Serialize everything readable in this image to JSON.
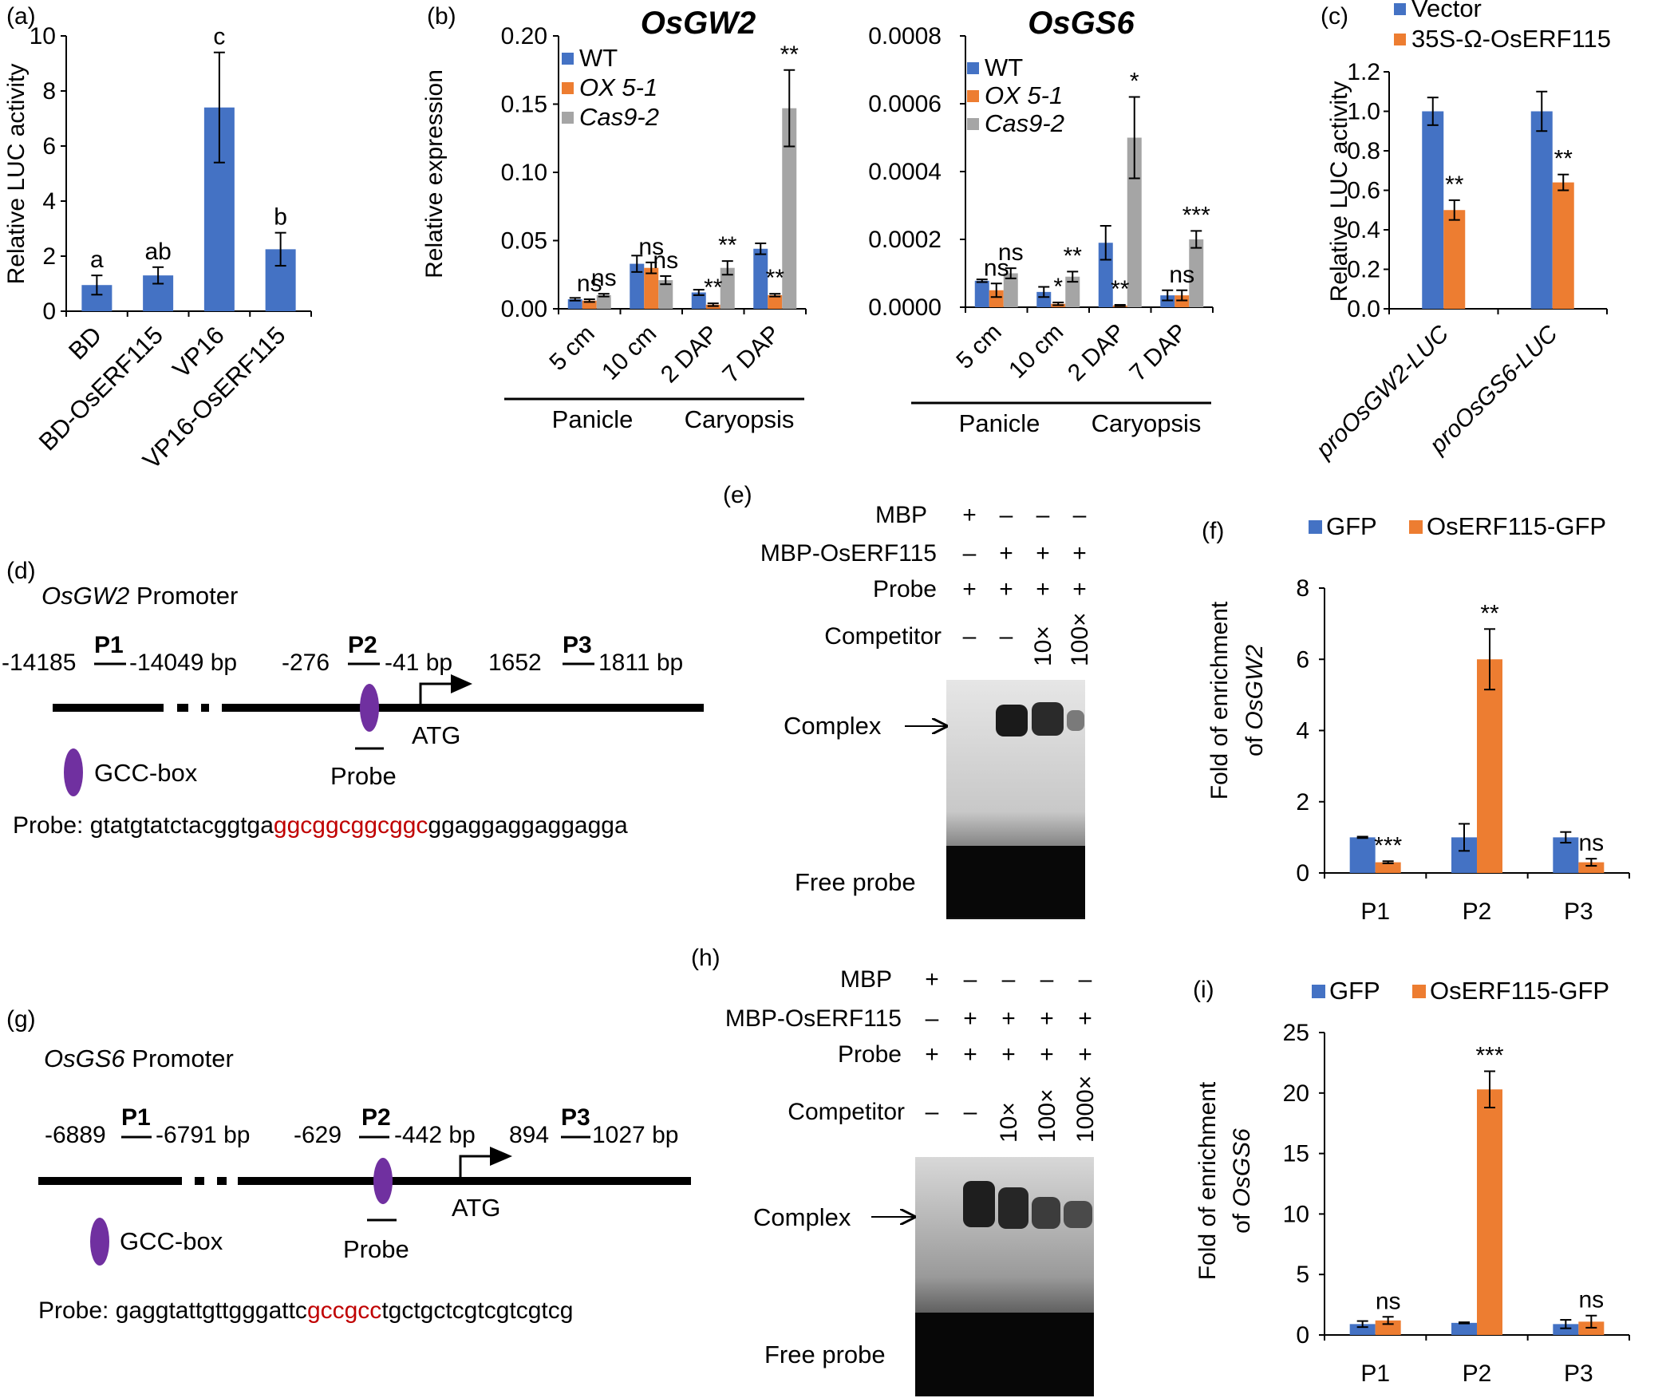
{
  "colors": {
    "blue": "#4472C4",
    "orange": "#ED7D31",
    "gray": "#A5A5A5",
    "red": "#C00000",
    "purple": "#7030A0"
  },
  "chart_data": [
    {
      "panel": "(a)",
      "type": "bar",
      "ylabel": "Relative LUC activity",
      "ylim": [
        0,
        10
      ],
      "yticks": [
        0,
        2,
        4,
        6,
        8,
        10
      ],
      "categories": [
        "BD",
        "BD-OsERF115",
        "VP16",
        "VP16-OsERF115"
      ],
      "series": [
        {
          "color": "blue",
          "values": [
            0.95,
            1.3,
            7.4,
            2.25
          ],
          "errors": [
            0.35,
            0.3,
            2.0,
            0.6
          ]
        }
      ],
      "annotations": [
        "a",
        "ab",
        "c",
        "b"
      ]
    },
    {
      "panel": "(b)",
      "type": "bar",
      "title": "OsGW2",
      "ylabel": "Relative expression",
      "ylim": [
        0,
        0.2
      ],
      "yticks": [
        "0.00",
        "0.05",
        "0.10",
        "0.15",
        "0.20"
      ],
      "categories": [
        "5 cm",
        "10 cm",
        "2 DAP",
        "7 DAP"
      ],
      "groups": [
        {
          "label": "Panicle",
          "span": [
            0,
            1
          ]
        },
        {
          "label": "Caryopsis",
          "span": [
            2,
            3
          ]
        }
      ],
      "series": [
        {
          "name": "WT",
          "color": "blue",
          "values": [
            0.007,
            0.033,
            0.012,
            0.044
          ],
          "errors": [
            0.001,
            0.006,
            0.002,
            0.004
          ]
        },
        {
          "name": "OX 5-1",
          "color": "orange",
          "values": [
            0.006,
            0.03,
            0.003,
            0.01
          ],
          "errors": [
            0.001,
            0.004,
            0.001,
            0.001
          ]
        },
        {
          "name": "Cas9-2",
          "color": "gray",
          "values": [
            0.01,
            0.021,
            0.03,
            0.147
          ],
          "errors": [
            0.001,
            0.003,
            0.005,
            0.028
          ]
        }
      ],
      "annotations": [
        {
          "cat": 0,
          "series": 1,
          "text": "ns"
        },
        {
          "cat": 0,
          "series": 2,
          "text": "ns"
        },
        {
          "cat": 1,
          "series": 1,
          "text": "ns"
        },
        {
          "cat": 1,
          "series": 2,
          "text": "ns"
        },
        {
          "cat": 2,
          "series": 1,
          "text": "**"
        },
        {
          "cat": 2,
          "series": 2,
          "text": "**"
        },
        {
          "cat": 3,
          "series": 1,
          "text": "**"
        },
        {
          "cat": 3,
          "series": 2,
          "text": "**"
        }
      ]
    },
    {
      "panel": "",
      "type": "bar",
      "title": "OsGS6",
      "ylabel": "",
      "ylim": [
        0,
        0.0008
      ],
      "yticks": [
        "0.0000",
        "0.0002",
        "0.0004",
        "0.0006",
        "0.0008"
      ],
      "categories": [
        "5 cm",
        "10 cm",
        "2 DAP",
        "7 DAP"
      ],
      "groups": [
        {
          "label": "Panicle",
          "span": [
            0,
            1
          ]
        },
        {
          "label": "Caryopsis",
          "span": [
            2,
            3
          ]
        }
      ],
      "series": [
        {
          "name": "WT",
          "color": "blue",
          "values": [
            7.8e-05,
            4.5e-05,
            0.00019,
            3.5e-05
          ],
          "errors": [
            4e-06,
            1.5e-05,
            5e-05,
            1.5e-05
          ]
        },
        {
          "name": "OX 5-1",
          "color": "orange",
          "values": [
            5e-05,
            1e-05,
            5e-06,
            3.5e-05
          ],
          "errors": [
            2e-05,
            4e-06,
            2e-06,
            1.5e-05
          ]
        },
        {
          "name": "Cas9-2",
          "color": "gray",
          "values": [
            0.0001,
            9e-05,
            0.0005,
            0.0002
          ],
          "errors": [
            1.5e-05,
            1.5e-05,
            0.00012,
            2.5e-05
          ]
        }
      ],
      "annotations": [
        {
          "cat": 0,
          "series": 1,
          "text": "ns"
        },
        {
          "cat": 0,
          "series": 2,
          "text": "ns"
        },
        {
          "cat": 1,
          "series": 1,
          "text": "*"
        },
        {
          "cat": 1,
          "series": 2,
          "text": "**"
        },
        {
          "cat": 2,
          "series": 1,
          "text": "**"
        },
        {
          "cat": 2,
          "series": 2,
          "text": "*"
        },
        {
          "cat": 3,
          "series": 1,
          "text": "ns"
        },
        {
          "cat": 3,
          "series": 2,
          "text": "***"
        }
      ]
    },
    {
      "panel": "(c)",
      "type": "bar",
      "ylabel": "Relative LUC activity",
      "ylim": [
        0,
        1.2
      ],
      "yticks": [
        "0.0",
        "0.2",
        "0.4",
        "0.6",
        "0.8",
        "1.0",
        "1.2"
      ],
      "categories": [
        "proOsGW2-LUC",
        "proOsGS6-LUC"
      ],
      "series": [
        {
          "name": "Vector",
          "color": "blue",
          "values": [
            1.0,
            1.0
          ],
          "errors": [
            0.07,
            0.1
          ]
        },
        {
          "name": "35S-Ω-OsERF115",
          "color": "orange",
          "values": [
            0.5,
            0.64
          ],
          "errors": [
            0.05,
            0.04
          ]
        }
      ],
      "annotations": [
        {
          "cat": 0,
          "series": 1,
          "text": "**"
        },
        {
          "cat": 1,
          "series": 1,
          "text": "**"
        }
      ]
    },
    {
      "panel": "(f)",
      "type": "bar",
      "ylabel": "Fold of enrichment",
      "ylabel2": "of OsGW2",
      "ylim": [
        0,
        8
      ],
      "yticks": [
        "0",
        "2",
        "4",
        "6",
        "8"
      ],
      "categories": [
        "P1",
        "P2",
        "P3"
      ],
      "series": [
        {
          "name": "GFP",
          "color": "blue",
          "values": [
            1.0,
            1.0,
            1.0
          ],
          "errors": [
            0.02,
            0.38,
            0.15
          ]
        },
        {
          "name": "OsERF115-GFP",
          "color": "orange",
          "values": [
            0.3,
            6.0,
            0.3
          ],
          "errors": [
            0.03,
            0.85,
            0.1
          ]
        }
      ],
      "annotations": [
        {
          "cat": 0,
          "series": 1,
          "text": "***"
        },
        {
          "cat": 1,
          "series": 1,
          "text": "**"
        },
        {
          "cat": 2,
          "series": 1,
          "text": "ns"
        }
      ]
    },
    {
      "panel": "(i)",
      "type": "bar",
      "ylabel": "Fold of enrichment",
      "ylabel2": "of OsGS6",
      "ylim": [
        0,
        25
      ],
      "yticks": [
        "0",
        "5",
        "10",
        "15",
        "20",
        "25"
      ],
      "categories": [
        "P1",
        "P2",
        "P3"
      ],
      "series": [
        {
          "name": "GFP",
          "color": "blue",
          "values": [
            0.9,
            1.0,
            0.9
          ],
          "errors": [
            0.25,
            0.05,
            0.35
          ]
        },
        {
          "name": "OsERF115-GFP",
          "color": "orange",
          "values": [
            1.2,
            20.3,
            1.1
          ],
          "errors": [
            0.3,
            1.5,
            0.5
          ]
        }
      ],
      "annotations": [
        {
          "cat": 0,
          "series": 1,
          "text": "ns"
        },
        {
          "cat": 1,
          "series": 1,
          "text": "***"
        },
        {
          "cat": 2,
          "series": 1,
          "text": "ns"
        }
      ]
    }
  ],
  "panel_d": {
    "label": "(d)",
    "gene": "OsGW2",
    "promoter_word": "Promoter",
    "coords": [
      "-14185",
      "P1",
      "-14049 bp",
      "-276",
      "P2",
      "-41 bp",
      "1652",
      "P3",
      "1811 bp"
    ],
    "atg": "ATG",
    "probe_label": "Probe",
    "gcc_box": "GCC-box",
    "seq_label": "Probe:",
    "seq_pre": "gtatgtatctacggtga",
    "seq_red": "ggcggcggcggc",
    "seq_post": "ggaggaggaggagga"
  },
  "panel_g": {
    "label": "(g)",
    "gene": "OsGS6",
    "promoter_word": "Promoter",
    "coords": [
      "-6889",
      "P1",
      "-6791 bp",
      "-629",
      "P2",
      "-442 bp",
      "894",
      "P3",
      "1027 bp"
    ],
    "atg": "ATG",
    "probe_label": "Probe",
    "gcc_box": "GCC-box",
    "seq_label": "Probe:",
    "seq_pre": "gaggtattgttgggattc",
    "seq_red": "gccgcc",
    "seq_post": "tgctgctcgtcgtcgtcg"
  },
  "panel_e": {
    "label": "(e)",
    "rows": [
      "MBP",
      "MBP-OsERF115",
      "Probe",
      "Competitor"
    ],
    "signs": [
      [
        "+",
        "–",
        "–",
        "–"
      ],
      [
        "–",
        "+",
        "+",
        "+"
      ],
      [
        "+",
        "+",
        "+",
        "+"
      ],
      [
        "–",
        "–",
        "10×",
        "100×"
      ]
    ],
    "complex": "Complex",
    "free_probe": "Free probe"
  },
  "panel_h": {
    "label": "(h)",
    "rows": [
      "MBP",
      "MBP-OsERF115",
      "Probe",
      "Competitor"
    ],
    "signs": [
      [
        "+",
        "–",
        "–",
        "–",
        "–"
      ],
      [
        "–",
        "+",
        "+",
        "+",
        "+"
      ],
      [
        "+",
        "+",
        "+",
        "+",
        "+"
      ],
      [
        "–",
        "–",
        "10×",
        "100×",
        "1000×"
      ]
    ],
    "complex": "Complex",
    "free_probe": "Free probe"
  }
}
